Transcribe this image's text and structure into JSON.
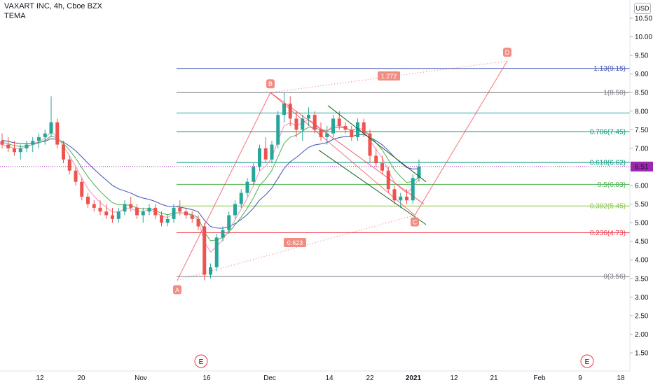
{
  "header": {
    "symbol_line": "VAXART INC, 4h, Cboe BZX",
    "indicator": "TEMA"
  },
  "currency_button": "USD",
  "colors": {
    "bull": "#26a69a",
    "bear": "#ef5350",
    "current_price_bg": "#9c27b0",
    "tema_line": "#3f51b5"
  },
  "chart_data": {
    "type": "candlestick",
    "title": "VAXART INC, 4h, Cboe BZX",
    "ylim": [
      1.25,
      11.0
    ],
    "y_ticks": [
      "10.50",
      "10.00",
      "9.50",
      "9.00",
      "8.50",
      "8.00",
      "7.50",
      "7.00",
      "6.50",
      "6.00",
      "5.50",
      "5.00",
      "4.50",
      "4.00",
      "3.50",
      "3.00",
      "2.50",
      "2.00",
      "1.50"
    ],
    "x_ticks": [
      "12",
      "20",
      "Nov",
      "16",
      "Dec",
      "14",
      "22",
      "2021",
      "12",
      "21",
      "Feb",
      "9",
      "18"
    ],
    "current_price": "6.51",
    "fib_levels": [
      {
        "label": "1.13(9.15)",
        "value": 9.15,
        "color": "#3f51b5"
      },
      {
        "label": "1(8.50)",
        "value": 8.5,
        "color": "#787b86"
      },
      {
        "label": "",
        "value": 7.95,
        "color": "#26a69a"
      },
      {
        "label": "0.786(7.45)",
        "value": 7.45,
        "color": "#089981"
      },
      {
        "label": "0.618(6.62)",
        "value": 6.62,
        "color": "#089981"
      },
      {
        "label": "0.5(6.03)",
        "value": 6.03,
        "color": "#4caf50"
      },
      {
        "label": "0.382(5.45)",
        "value": 5.45,
        "color": "#8bc34a"
      },
      {
        "label": "0.236(4.73)",
        "value": 4.73,
        "color": "#f23645"
      },
      {
        "label": "0(3.56)",
        "value": 3.56,
        "color": "#787b86"
      }
    ],
    "wave_points": [
      {
        "label": "A",
        "value": 3.45
      },
      {
        "label": "B",
        "value": 8.5
      },
      {
        "label": "C",
        "value": 5.2
      },
      {
        "label": "D",
        "value": 9.35
      }
    ],
    "ratio_labels": [
      "1.272",
      "0.623"
    ],
    "event_markers": [
      "E",
      "E"
    ],
    "candles": [
      [
        7.2,
        7.4,
        7.0,
        7.1
      ],
      [
        7.1,
        7.3,
        6.9,
        7.0
      ],
      [
        7.0,
        7.2,
        6.8,
        6.9
      ],
      [
        6.9,
        7.1,
        6.7,
        7.0
      ],
      [
        7.0,
        7.2,
        6.9,
        7.1
      ],
      [
        7.1,
        7.3,
        6.9,
        7.2
      ],
      [
        7.2,
        7.4,
        7.0,
        7.3
      ],
      [
        7.3,
        7.5,
        7.1,
        7.4
      ],
      [
        7.4,
        8.4,
        7.3,
        7.7
      ],
      [
        7.7,
        7.8,
        7.0,
        7.1
      ],
      [
        7.1,
        7.2,
        6.6,
        6.7
      ],
      [
        6.7,
        6.8,
        6.3,
        6.4
      ],
      [
        6.4,
        6.5,
        6.0,
        6.1
      ],
      [
        6.1,
        6.2,
        5.6,
        5.7
      ],
      [
        5.7,
        5.8,
        5.4,
        5.5
      ],
      [
        5.5,
        5.6,
        5.3,
        5.4
      ],
      [
        5.4,
        5.6,
        5.2,
        5.3
      ],
      [
        5.3,
        5.5,
        5.1,
        5.2
      ],
      [
        5.2,
        5.4,
        5.0,
        5.1
      ],
      [
        5.1,
        5.4,
        5.0,
        5.3
      ],
      [
        5.3,
        5.6,
        5.2,
        5.5
      ],
      [
        5.5,
        5.7,
        5.3,
        5.4
      ],
      [
        5.4,
        5.5,
        5.1,
        5.2
      ],
      [
        5.2,
        5.4,
        5.0,
        5.3
      ],
      [
        5.3,
        5.5,
        5.2,
        5.4
      ],
      [
        5.4,
        5.5,
        5.1,
        5.2
      ],
      [
        5.2,
        5.3,
        4.9,
        5.0
      ],
      [
        5.0,
        5.2,
        4.9,
        5.1
      ],
      [
        5.1,
        5.5,
        5.0,
        5.4
      ],
      [
        5.4,
        5.6,
        5.2,
        5.3
      ],
      [
        5.3,
        5.4,
        5.1,
        5.2
      ],
      [
        5.2,
        5.3,
        5.0,
        5.1
      ],
      [
        5.1,
        5.2,
        4.8,
        4.9
      ],
      [
        4.9,
        5.0,
        3.45,
        3.6
      ],
      [
        3.6,
        3.9,
        3.5,
        3.8
      ],
      [
        3.8,
        4.7,
        3.7,
        4.6
      ],
      [
        4.6,
        4.9,
        4.5,
        4.8
      ],
      [
        4.8,
        5.3,
        4.7,
        5.2
      ],
      [
        5.2,
        5.6,
        5.1,
        5.5
      ],
      [
        5.5,
        5.9,
        5.4,
        5.8
      ],
      [
        5.8,
        6.2,
        5.7,
        6.1
      ],
      [
        6.1,
        6.6,
        6.0,
        6.5
      ],
      [
        6.5,
        7.1,
        6.4,
        7.0
      ],
      [
        7.0,
        7.3,
        6.6,
        6.7
      ],
      [
        6.7,
        7.2,
        6.6,
        7.1
      ],
      [
        7.1,
        8.0,
        7.0,
        7.9
      ],
      [
        7.9,
        8.5,
        7.7,
        8.2
      ],
      [
        8.2,
        8.4,
        7.6,
        7.8
      ],
      [
        7.8,
        8.0,
        7.3,
        7.5
      ],
      [
        7.5,
        7.9,
        7.2,
        7.8
      ],
      [
        7.8,
        8.1,
        7.6,
        7.9
      ],
      [
        7.9,
        8.0,
        7.4,
        7.5
      ],
      [
        7.5,
        7.7,
        7.2,
        7.3
      ],
      [
        7.3,
        7.6,
        7.1,
        7.4
      ],
      [
        7.4,
        7.9,
        7.3,
        7.8
      ],
      [
        7.8,
        8.0,
        7.5,
        7.6
      ],
      [
        7.6,
        7.7,
        7.4,
        7.5
      ],
      [
        7.5,
        7.6,
        7.2,
        7.3
      ],
      [
        7.3,
        7.8,
        7.2,
        7.7
      ],
      [
        7.7,
        7.8,
        7.3,
        7.4
      ],
      [
        7.4,
        7.5,
        6.6,
        6.8
      ],
      [
        6.8,
        7.0,
        6.5,
        6.6
      ],
      [
        6.6,
        6.8,
        6.3,
        6.4
      ],
      [
        6.4,
        6.5,
        5.8,
        5.9
      ],
      [
        5.9,
        6.0,
        5.5,
        5.6
      ],
      [
        5.6,
        5.8,
        5.4,
        5.7
      ],
      [
        5.7,
        5.9,
        5.5,
        5.6
      ],
      [
        5.6,
        6.3,
        5.5,
        6.2
      ],
      [
        6.2,
        6.7,
        6.1,
        6.51
      ]
    ]
  }
}
